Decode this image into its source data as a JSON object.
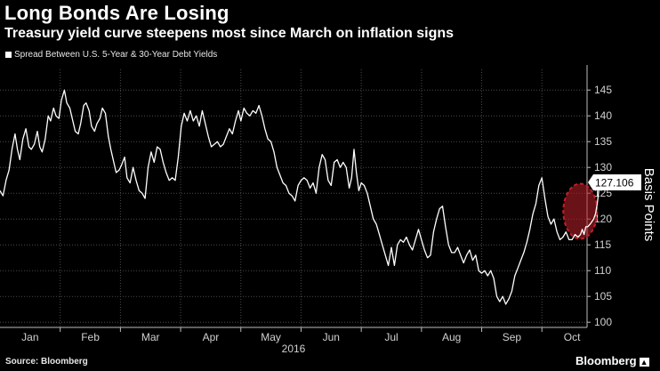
{
  "title": "Long Bonds Are Losing",
  "subtitle": "Treasury yield curve steepens most since March on inflation signs",
  "source": "Source: Bloomberg",
  "brand": "Bloomberg",
  "colors": {
    "background": "#000000",
    "line": "#ffffff",
    "highlight": "#c0202a"
  },
  "chart_data": {
    "type": "line",
    "title": "Long Bonds Are Losing",
    "subtitle": "Treasury yield curve steepens most since March on inflation signs",
    "legend": "Spread Between U.S. 5-Year & 30-Year Debt Yields",
    "ylabel": "Basis Points",
    "xlabel": "2016",
    "ylim": [
      99,
      149
    ],
    "yticks": [
      100,
      105,
      110,
      115,
      120,
      125,
      130,
      135,
      140,
      145
    ],
    "xlim": [
      0,
      9.75
    ],
    "xticks": [
      {
        "label": "Jan",
        "pos": 0.5
      },
      {
        "label": "Feb",
        "pos": 1.5
      },
      {
        "label": "Mar",
        "pos": 2.5
      },
      {
        "label": "Apr",
        "pos": 3.5
      },
      {
        "label": "May",
        "pos": 4.5
      },
      {
        "label": "Jun",
        "pos": 5.5
      },
      {
        "label": "Jul",
        "pos": 6.5
      },
      {
        "label": "Aug",
        "pos": 7.5
      },
      {
        "label": "Sep",
        "pos": 8.5
      },
      {
        "label": "Oct",
        "pos": 9.5
      }
    ],
    "last_value_label": "127.106",
    "highlight_range": [
      9.5,
      9.75
    ],
    "series": [
      {
        "name": "Spread Between U.S. 5-Year & 30-Year Debt Yields",
        "points": [
          [
            0.0,
            125.5
          ],
          [
            0.05,
            124.5
          ],
          [
            0.1,
            127.5
          ],
          [
            0.15,
            129.5
          ],
          [
            0.2,
            133.5
          ],
          [
            0.25,
            136.5
          ],
          [
            0.29,
            133.5
          ],
          [
            0.33,
            131.5
          ],
          [
            0.38,
            135.5
          ],
          [
            0.43,
            137.5
          ],
          [
            0.48,
            134.0
          ],
          [
            0.52,
            133.5
          ],
          [
            0.57,
            134.5
          ],
          [
            0.62,
            137.0
          ],
          [
            0.66,
            134.0
          ],
          [
            0.7,
            133.0
          ],
          [
            0.75,
            135.5
          ],
          [
            0.8,
            140.0
          ],
          [
            0.84,
            139.0
          ],
          [
            0.89,
            141.5
          ],
          [
            0.93,
            140.0
          ],
          [
            0.98,
            139.5
          ],
          [
            1.02,
            143.0
          ],
          [
            1.07,
            145.0
          ],
          [
            1.11,
            142.5
          ],
          [
            1.16,
            141.5
          ],
          [
            1.2,
            139.5
          ],
          [
            1.25,
            137.0
          ],
          [
            1.3,
            136.5
          ],
          [
            1.34,
            138.5
          ],
          [
            1.39,
            142.0
          ],
          [
            1.43,
            142.5
          ],
          [
            1.48,
            141.0
          ],
          [
            1.52,
            138.0
          ],
          [
            1.57,
            137.0
          ],
          [
            1.61,
            138.5
          ],
          [
            1.66,
            139.5
          ],
          [
            1.7,
            141.5
          ],
          [
            1.75,
            140.5
          ],
          [
            1.8,
            136.0
          ],
          [
            1.84,
            133.5
          ],
          [
            1.89,
            131.0
          ],
          [
            1.93,
            129.0
          ],
          [
            1.98,
            129.5
          ],
          [
            2.02,
            130.5
          ],
          [
            2.07,
            132.0
          ],
          [
            2.11,
            128.0
          ],
          [
            2.16,
            127.0
          ],
          [
            2.21,
            130.0
          ],
          [
            2.26,
            127.5
          ],
          [
            2.31,
            125.5
          ],
          [
            2.36,
            125.0
          ],
          [
            2.41,
            124.0
          ],
          [
            2.46,
            130.0
          ],
          [
            2.51,
            133.0
          ],
          [
            2.56,
            131.0
          ],
          [
            2.61,
            134.0
          ],
          [
            2.66,
            133.5
          ],
          [
            2.71,
            131.0
          ],
          [
            2.76,
            129.0
          ],
          [
            2.81,
            127.5
          ],
          [
            2.86,
            128.0
          ],
          [
            2.91,
            127.5
          ],
          [
            2.96,
            132.0
          ],
          [
            3.01,
            138.0
          ],
          [
            3.06,
            140.5
          ],
          [
            3.11,
            139.0
          ],
          [
            3.16,
            141.0
          ],
          [
            3.21,
            139.0
          ],
          [
            3.26,
            140.0
          ],
          [
            3.31,
            138.0
          ],
          [
            3.36,
            141.0
          ],
          [
            3.41,
            138.5
          ],
          [
            3.46,
            136.0
          ],
          [
            3.51,
            134.0
          ],
          [
            3.56,
            134.5
          ],
          [
            3.61,
            135.0
          ],
          [
            3.66,
            134.0
          ],
          [
            3.71,
            134.5
          ],
          [
            3.76,
            136.0
          ],
          [
            3.81,
            137.5
          ],
          [
            3.86,
            136.5
          ],
          [
            3.91,
            139.0
          ],
          [
            3.96,
            141.0
          ],
          [
            4.0,
            139.0
          ],
          [
            4.05,
            141.5
          ],
          [
            4.1,
            140.5
          ],
          [
            4.15,
            140.0
          ],
          [
            4.2,
            141.0
          ],
          [
            4.25,
            140.5
          ],
          [
            4.3,
            142.0
          ],
          [
            4.35,
            140.0
          ],
          [
            4.4,
            137.5
          ],
          [
            4.45,
            135.5
          ],
          [
            4.5,
            135.0
          ],
          [
            4.55,
            133.0
          ],
          [
            4.6,
            130.0
          ],
          [
            4.65,
            128.5
          ],
          [
            4.7,
            127.0
          ],
          [
            4.75,
            126.5
          ],
          [
            4.8,
            125.0
          ],
          [
            4.85,
            124.5
          ],
          [
            4.9,
            123.5
          ],
          [
            4.95,
            126.5
          ],
          [
            5.0,
            127.5
          ],
          [
            5.05,
            128.0
          ],
          [
            5.1,
            127.5
          ],
          [
            5.15,
            126.0
          ],
          [
            5.2,
            127.0
          ],
          [
            5.25,
            125.0
          ],
          [
            5.3,
            130.0
          ],
          [
            5.35,
            132.5
          ],
          [
            5.4,
            131.5
          ],
          [
            5.45,
            127.5
          ],
          [
            5.5,
            126.5
          ],
          [
            5.55,
            131.0
          ],
          [
            5.6,
            131.5
          ],
          [
            5.65,
            130.0
          ],
          [
            5.7,
            131.0
          ],
          [
            5.75,
            130.0
          ],
          [
            5.8,
            126.0
          ],
          [
            5.84,
            128.0
          ],
          [
            5.88,
            133.5
          ],
          [
            5.92,
            129.0
          ],
          [
            5.96,
            125.5
          ],
          [
            6.0,
            127.0
          ],
          [
            6.05,
            126.5
          ],
          [
            6.1,
            125.0
          ],
          [
            6.15,
            122.5
          ],
          [
            6.2,
            120.0
          ],
          [
            6.25,
            119.0
          ],
          [
            6.3,
            117.0
          ],
          [
            6.35,
            115.0
          ],
          [
            6.4,
            113.0
          ],
          [
            6.45,
            111.0
          ],
          [
            6.5,
            114.5
          ],
          [
            6.55,
            111.0
          ],
          [
            6.6,
            115.0
          ],
          [
            6.65,
            116.0
          ],
          [
            6.7,
            115.5
          ],
          [
            6.75,
            116.5
          ],
          [
            6.8,
            115.0
          ],
          [
            6.85,
            114.0
          ],
          [
            6.9,
            116.0
          ],
          [
            6.95,
            118.0
          ],
          [
            7.0,
            116.0
          ],
          [
            7.05,
            114.0
          ],
          [
            7.1,
            112.5
          ],
          [
            7.15,
            113.0
          ],
          [
            7.2,
            117.5
          ],
          [
            7.25,
            120.0
          ],
          [
            7.3,
            122.0
          ],
          [
            7.35,
            122.5
          ],
          [
            7.4,
            118.5
          ],
          [
            7.45,
            115.0
          ],
          [
            7.5,
            113.5
          ],
          [
            7.55,
            113.5
          ],
          [
            7.6,
            114.5
          ],
          [
            7.65,
            113.0
          ],
          [
            7.7,
            111.5
          ],
          [
            7.75,
            113.0
          ],
          [
            7.8,
            114.0
          ],
          [
            7.85,
            112.0
          ],
          [
            7.9,
            113.0
          ],
          [
            7.95,
            110.0
          ],
          [
            8.0,
            109.5
          ],
          [
            8.05,
            110.0
          ],
          [
            8.1,
            109.0
          ],
          [
            8.15,
            110.0
          ],
          [
            8.2,
            108.5
          ],
          [
            8.25,
            105.0
          ],
          [
            8.3,
            104.0
          ],
          [
            8.35,
            105.0
          ],
          [
            8.4,
            103.5
          ],
          [
            8.45,
            104.5
          ],
          [
            8.5,
            106.0
          ],
          [
            8.55,
            109.0
          ],
          [
            8.6,
            110.5
          ],
          [
            8.65,
            112.0
          ],
          [
            8.7,
            113.5
          ],
          [
            8.75,
            115.5
          ],
          [
            8.8,
            118.0
          ],
          [
            8.85,
            121.0
          ],
          [
            8.9,
            123.0
          ],
          [
            8.95,
            126.5
          ],
          [
            9.0,
            128.0
          ],
          [
            9.05,
            124.0
          ],
          [
            9.1,
            120.5
          ],
          [
            9.15,
            119.0
          ],
          [
            9.2,
            120.0
          ],
          [
            9.25,
            117.5
          ],
          [
            9.3,
            116.0
          ],
          [
            9.35,
            116.5
          ],
          [
            9.4,
            117.5
          ],
          [
            9.45,
            116.0
          ],
          [
            9.5,
            116.0
          ],
          [
            9.55,
            117.0
          ],
          [
            9.6,
            116.5
          ],
          [
            9.64,
            117.0
          ],
          [
            9.67,
            118.0
          ],
          [
            9.7,
            117.0
          ],
          [
            9.73,
            118.5
          ],
          [
            9.76,
            118.5
          ],
          [
            9.8,
            119.0
          ],
          [
            9.83,
            119.5
          ],
          [
            9.86,
            120.0
          ],
          [
            9.89,
            121.0
          ],
          [
            9.92,
            123.0
          ],
          [
            9.95,
            126.0
          ],
          [
            9.98,
            127.1
          ]
        ]
      }
    ]
  }
}
